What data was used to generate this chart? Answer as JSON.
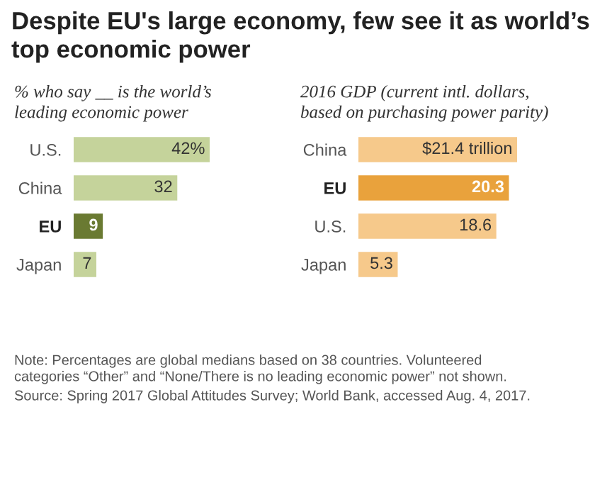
{
  "chart_data": [
    {
      "type": "bar",
      "orientation": "horizontal",
      "title": "Despite EU's large economy, few see it as world’s top economic power",
      "subtitle": "% who say __ is the world’s\nleading economic power",
      "categories": [
        "U.S.",
        "China",
        "EU",
        "Japan"
      ],
      "values": [
        42,
        32,
        9,
        7
      ],
      "colors": [
        "#c5d39b",
        "#c5d39b",
        "#6a7a32",
        "#c5d39b"
      ],
      "value_labels": [
        "42%",
        "32",
        "9",
        "7"
      ],
      "annotations": [
        "Note: Percentages are global medians based on 38 countries. Volunteered\ncategories “Other” and “None/There is no leading economic power” not shown.",
        "Source: Spring 2017 Global Attitudes Survey; World Bank, accessed Aug. 4, 2017."
      ]
    },
    {
      "type": "bar",
      "orientation": "horizontal",
      "subtitle": "2016 GDP (current intl. dollars,\nbased on purchasing power parity)",
      "categories": [
        "China",
        "EU",
        "U.S.",
        "Japan"
      ],
      "values": [
        21.4,
        20.3,
        18.6,
        5.3
      ],
      "colors": [
        "#f6c98b",
        "#e9a23c",
        "#f6c98b",
        "#f6c98b"
      ],
      "value_labels": [
        "$21.4 trillion",
        "20.3",
        "18.6",
        "5.3"
      ]
    }
  ]
}
